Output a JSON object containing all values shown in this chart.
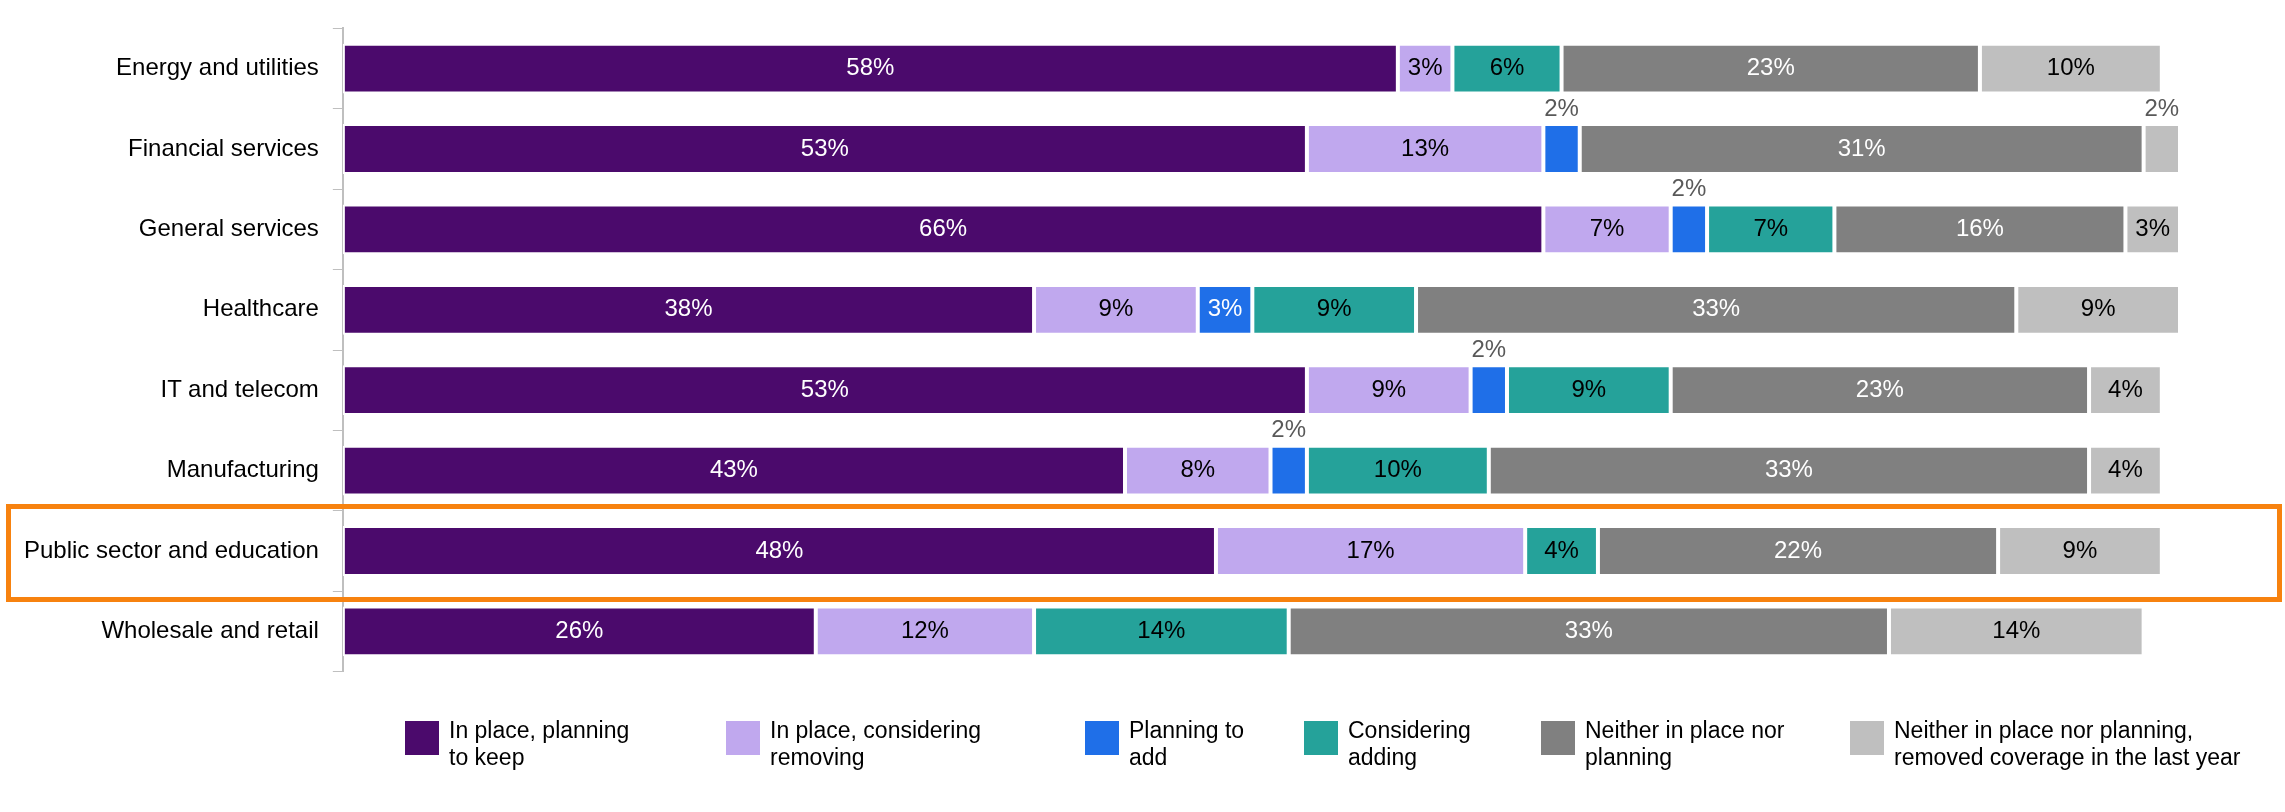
{
  "chart_data": {
    "type": "bar",
    "orientation": "horizontal",
    "stacked": true,
    "xlim": [
      0,
      101
    ],
    "tick_labels": "y",
    "legend": "bottom",
    "categories": [
      "Energy and utilities",
      "Financial services",
      "General services",
      "Healthcare",
      "IT and telecom",
      "Manufacturing",
      "Public sector and education",
      "Wholesale and retail"
    ],
    "series": [
      {
        "name": "In place, planning to keep",
        "color": "#4b0a6c",
        "values": [
          58,
          53,
          66,
          38,
          53,
          43,
          48,
          26
        ],
        "value_labels": [
          "58%",
          "53%",
          "66%",
          "38%",
          "53%",
          "43%",
          "48%",
          "26%"
        ]
      },
      {
        "name": "In place, considering removing",
        "color": "#c0a8ee",
        "values": [
          3,
          13,
          7,
          9,
          9,
          8,
          17,
          12
        ],
        "value_labels": [
          "3%",
          "13%",
          "7%",
          "9%",
          "9%",
          "8%",
          "17%",
          "12%"
        ]
      },
      {
        "name": "Planning to add",
        "color": "#1f6fe8",
        "values": [
          null,
          2,
          2,
          3,
          2,
          2,
          null,
          null
        ],
        "value_labels": [
          null,
          "2%",
          "2%",
          "3%",
          "2%",
          "2%",
          null,
          null
        ]
      },
      {
        "name": "Considering adding",
        "color": "#25a29a",
        "values": [
          6,
          null,
          7,
          9,
          9,
          10,
          4,
          14
        ],
        "value_labels": [
          "6%",
          null,
          "7%",
          "9%",
          "9%",
          "10%",
          "4%",
          "14%"
        ]
      },
      {
        "name": "Neither in place nor planning",
        "color": "#808080",
        "values": [
          23,
          31,
          16,
          33,
          23,
          33,
          22,
          33
        ],
        "value_labels": [
          "23%",
          "31%",
          "16%",
          "33%",
          "23%",
          "33%",
          "22%",
          "33%"
        ]
      },
      {
        "name": "Neither in place nor planning, removed coverage in the last year",
        "color": "#bfbfbf",
        "values": [
          10,
          2,
          3,
          9,
          4,
          4,
          9,
          14
        ],
        "value_labels": [
          "10%",
          "2%",
          "3%",
          "9%",
          "4%",
          "4%",
          "9%",
          "14%"
        ]
      }
    ]
  }
}
